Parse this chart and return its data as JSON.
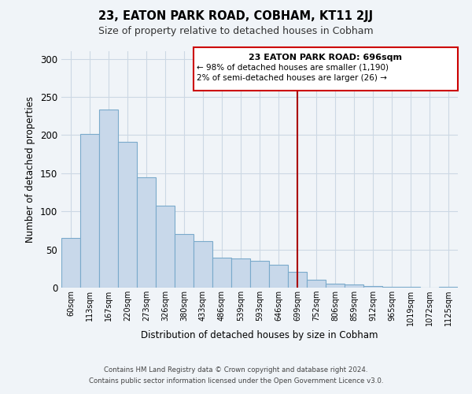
{
  "title": "23, EATON PARK ROAD, COBHAM, KT11 2JJ",
  "subtitle": "Size of property relative to detached houses in Cobham",
  "xlabel": "Distribution of detached houses by size in Cobham",
  "ylabel": "Number of detached properties",
  "bar_labels": [
    "60sqm",
    "113sqm",
    "167sqm",
    "220sqm",
    "273sqm",
    "326sqm",
    "380sqm",
    "433sqm",
    "486sqm",
    "539sqm",
    "593sqm",
    "646sqm",
    "699sqm",
    "752sqm",
    "806sqm",
    "859sqm",
    "912sqm",
    "965sqm",
    "1019sqm",
    "1072sqm",
    "1125sqm"
  ],
  "bar_values": [
    65,
    202,
    234,
    191,
    145,
    107,
    70,
    61,
    39,
    38,
    35,
    30,
    21,
    10,
    5,
    4,
    2,
    1,
    1,
    0,
    1
  ],
  "bar_color": "#c8d8ea",
  "bar_edge_color": "#7aaacb",
  "highlight_index": 12,
  "ylim": [
    0,
    310
  ],
  "yticks": [
    0,
    50,
    100,
    150,
    200,
    250,
    300
  ],
  "annotation_title": "23 EATON PARK ROAD: 696sqm",
  "annotation_line1": "← 98% of detached houses are smaller (1,190)",
  "annotation_line2": "2% of semi-detached houses are larger (26) →",
  "footer_line1": "Contains HM Land Registry data © Crown copyright and database right 2024.",
  "footer_line2": "Contains public sector information licensed under the Open Government Licence v3.0.",
  "background_color": "#f0f4f8",
  "grid_color": "#ccd8e4"
}
